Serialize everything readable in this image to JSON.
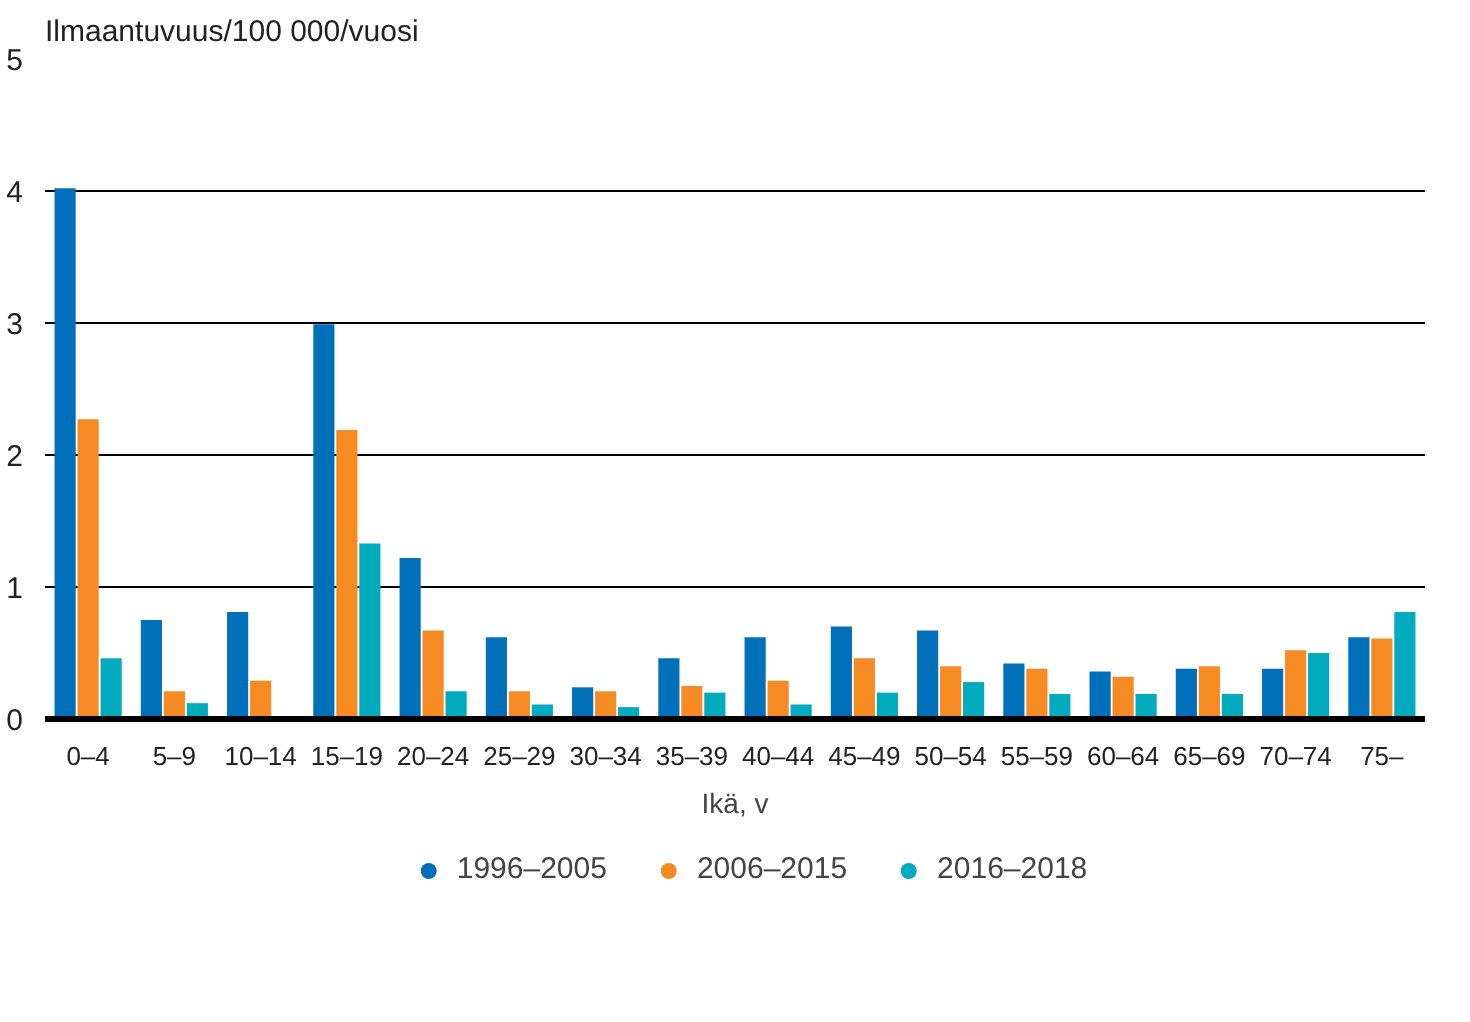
{
  "chart_data": {
    "type": "bar",
    "ylabel": "Ilmaantuvuus/100 000/vuosi",
    "xlabel": "Ikä, v",
    "categories": [
      "0–4",
      "5–9",
      "10–14",
      "15–19",
      "20–24",
      "25–29",
      "30–34",
      "35–39",
      "40–44",
      "45–49",
      "50–54",
      "55–59",
      "60–64",
      "65–69",
      "70–74",
      "75–"
    ],
    "series": [
      {
        "name": "1996–2005",
        "color": "#0070ba",
        "values": [
          4.02,
          0.75,
          0.81,
          2.99,
          1.22,
          0.62,
          0.24,
          0.46,
          0.62,
          0.7,
          0.67,
          0.42,
          0.36,
          0.38,
          0.38,
          0.62
        ]
      },
      {
        "name": "2006–2015",
        "color": "#f58b22",
        "values": [
          2.27,
          0.21,
          0.29,
          2.19,
          0.67,
          0.21,
          0.21,
          0.25,
          0.29,
          0.46,
          0.4,
          0.38,
          0.32,
          0.4,
          0.52,
          0.61
        ]
      },
      {
        "name": "2016–2018",
        "color": "#00abbd",
        "values": [
          0.46,
          0.12,
          null,
          1.33,
          0.21,
          0.11,
          0.09,
          0.2,
          0.11,
          0.2,
          0.28,
          0.19,
          0.19,
          0.19,
          0.5,
          0.81
        ]
      }
    ],
    "ylim": [
      0,
      5
    ],
    "yticks": [
      0,
      1,
      2,
      3,
      4,
      5
    ],
    "grid": "y",
    "legend": "bottom"
  }
}
